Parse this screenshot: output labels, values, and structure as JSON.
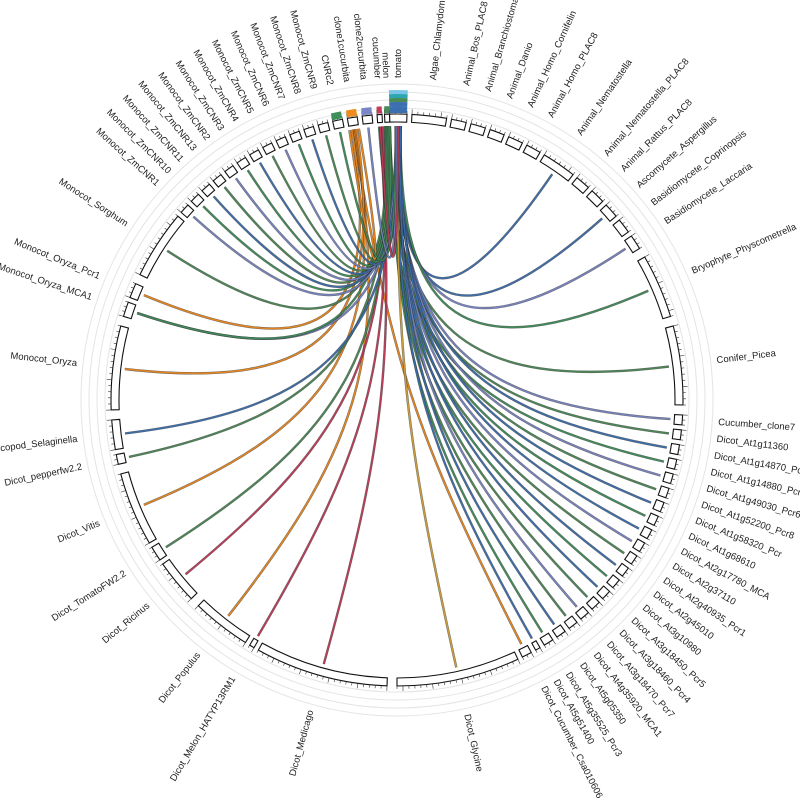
{
  "diagram": {
    "type": "circos-synteny",
    "segments": [
      {
        "id": "tomato",
        "label": "tomato"
      },
      {
        "id": "algae",
        "label": "Algae_Chlamydomonas"
      },
      {
        "id": "bos",
        "label": "Animal_Bos_PLAC8"
      },
      {
        "id": "branch",
        "label": "Animal_Branchiostoma"
      },
      {
        "id": "danio",
        "label": "Animal_Danio"
      },
      {
        "id": "homo_corn",
        "label": "Animal_Homo_Cornifelin"
      },
      {
        "id": "homo_plac8",
        "label": "Animal_Homo_PLAC8"
      },
      {
        "id": "nema",
        "label": "Animal_Nematostella"
      },
      {
        "id": "nema_plac8",
        "label": "Animal_Nematostella_PLAC8"
      },
      {
        "id": "rattus",
        "label": "Animal_Rattus_PLAC8"
      },
      {
        "id": "asperg",
        "label": "Ascomycete_Aspergillus"
      },
      {
        "id": "coprin",
        "label": "Basidiomycete_Coprinopsis"
      },
      {
        "id": "laccaria",
        "label": "Basidiomycete_Laccaria"
      },
      {
        "id": "physco",
        "label": "Bryophyte_Physcometrella"
      },
      {
        "id": "picea",
        "label": "Conifer_Picea"
      },
      {
        "id": "cuc7",
        "label": "Cucumber_clone7"
      },
      {
        "id": "at11360",
        "label": "Dicot_At1g11360"
      },
      {
        "id": "at14870",
        "label": "Dicot_At1g14870_Pcr2"
      },
      {
        "id": "at14880",
        "label": "Dicot_At1g14880_Pcr1"
      },
      {
        "id": "at49030",
        "label": "Dicot_At1g49030_Pcr6"
      },
      {
        "id": "at52200",
        "label": "Dicot_At1g52200_Pcr8"
      },
      {
        "id": "at58320",
        "label": "Dicot_At1g58320_Pcr"
      },
      {
        "id": "at68610",
        "label": "Dicot_At1g68610"
      },
      {
        "id": "at17780",
        "label": "Dicot_At2g17780_MCA"
      },
      {
        "id": "at37110",
        "label": "Dicot_At2g37110"
      },
      {
        "id": "at40935",
        "label": "Dicot_At2g40935_Pcr1"
      },
      {
        "id": "at45010",
        "label": "Dicot_At2g45010"
      },
      {
        "id": "at10980",
        "label": "Dicot_At3g10980"
      },
      {
        "id": "at18450",
        "label": "Dicot_At3g18450_Pcr5"
      },
      {
        "id": "at18460",
        "label": "Dicot_At3g18460_Pcr4"
      },
      {
        "id": "at18470",
        "label": "Dicot_At3g18470_Pcr7"
      },
      {
        "id": "at35920",
        "label": "Dicot_At4g35920_MCA1"
      },
      {
        "id": "at05350",
        "label": "Dicot_At5g05350"
      },
      {
        "id": "at35525",
        "label": "Dicot_At5g35525_Pcr3"
      },
      {
        "id": "at51400",
        "label": "Dicot_At5g51400"
      },
      {
        "id": "csa",
        "label": "Dicot_Cucumber_Csa010606"
      },
      {
        "id": "glycine",
        "label": "Dicot_Glycine"
      },
      {
        "id": "medicago",
        "label": "Dicot_Medicago"
      },
      {
        "id": "melon_hatyp",
        "label": "Dicot_Melon_HATYP13RM1"
      },
      {
        "id": "populus",
        "label": "Dicot_Populus"
      },
      {
        "id": "ricinus",
        "label": "Dicot_Ricinus"
      },
      {
        "id": "tomfw22",
        "label": "Dicot_TomatoFW2.2"
      },
      {
        "id": "vitis",
        "label": "Dicot_Vitis"
      },
      {
        "id": "pepper",
        "label": "Dicot_pepperfw2.2"
      },
      {
        "id": "selag",
        "label": "Lycopod_Selaginella"
      },
      {
        "id": "oryza",
        "label": "Monocot_Oryza"
      },
      {
        "id": "oryza_mca1",
        "label": "Monocot_Oryza_MCA1"
      },
      {
        "id": "oryza_pcr1",
        "label": "Monocot_Oryza_Pcr1"
      },
      {
        "id": "sorghum",
        "label": "Monocot_Sorghum"
      },
      {
        "id": "zmcnr1",
        "label": "Monocot_ZmCNR1"
      },
      {
        "id": "zmcnr10",
        "label": "Monocot_ZmCNR10"
      },
      {
        "id": "zmcnr11",
        "label": "Monocot_ZmCNR11"
      },
      {
        "id": "zmcnr13",
        "label": "Monocot_ZmCNR13"
      },
      {
        "id": "zmcnr2",
        "label": "Monocot_ZmCNR2"
      },
      {
        "id": "zmcnr3",
        "label": "Monocot_ZmCNR3"
      },
      {
        "id": "zmcnr4",
        "label": "Monocot_ZmCNR4"
      },
      {
        "id": "zmcnr5",
        "label": "Monocot_ZmCNR5"
      },
      {
        "id": "zmcnr6",
        "label": "Monocot_ZmCNR6"
      },
      {
        "id": "zmcnr7",
        "label": "Monocot_ZmCNR7"
      },
      {
        "id": "zmcnr8",
        "label": "Monocot_ZmCNR8"
      },
      {
        "id": "zmcnr9",
        "label": "Monocot_ZmCNR9"
      },
      {
        "id": "cnr2",
        "label": "CNRc2"
      },
      {
        "id": "clone1",
        "label": "clone1cucurbita"
      },
      {
        "id": "clone2",
        "label": "clone2cucurbita"
      },
      {
        "id": "cucumber",
        "label": "cucumber"
      },
      {
        "id": "melon",
        "label": "melon"
      }
    ],
    "source_colors": {
      "tomato": "#3b6fb0",
      "melon": "#4a8a55",
      "cucumber": "#c23b5a",
      "clone2cucurbita": "#7a86c8",
      "clone1cucurbita": "#f08a1c",
      "CNRc2": "#3f8f5a"
    },
    "links": [
      {
        "from": "tomato",
        "to": "nema",
        "color": "#3b6fb0"
      },
      {
        "from": "tomato",
        "to": "asperg",
        "color": "#3b6fb0"
      },
      {
        "from": "tomato",
        "to": "laccaria",
        "color": "#7a86c8"
      },
      {
        "from": "melon",
        "to": "picea",
        "color": "#4a8a55"
      },
      {
        "from": "tomato",
        "to": "physco",
        "color": "#3f8f5a"
      },
      {
        "from": "tomato",
        "to": "cuc7",
        "color": "#7a86c8"
      },
      {
        "from": "melon",
        "to": "at11360",
        "color": "#4a8a55"
      },
      {
        "from": "tomato",
        "to": "at14870",
        "color": "#3b6fb0"
      },
      {
        "from": "cucumber",
        "to": "at14880",
        "color": "#3f8f5a"
      },
      {
        "from": "tomato",
        "to": "at49030",
        "color": "#7a86c8"
      },
      {
        "from": "melon",
        "to": "at52200",
        "color": "#4a8a55"
      },
      {
        "from": "tomato",
        "to": "at58320",
        "color": "#3b6fb0"
      },
      {
        "from": "melon",
        "to": "at68610",
        "color": "#3f8f5a"
      },
      {
        "from": "tomato",
        "to": "at17780",
        "color": "#3b6fb0"
      },
      {
        "from": "tomato",
        "to": "at37110",
        "color": "#7a86c8"
      },
      {
        "from": "melon",
        "to": "at40935",
        "color": "#4a8a55"
      },
      {
        "from": "tomato",
        "to": "at45010",
        "color": "#3b6fb0"
      },
      {
        "from": "melon",
        "to": "at10980",
        "color": "#3f8f5a"
      },
      {
        "from": "tomato",
        "to": "at18450",
        "color": "#3b6fb0"
      },
      {
        "from": "melon",
        "to": "at18460",
        "color": "#4a8a55"
      },
      {
        "from": "tomato",
        "to": "at18470",
        "color": "#7a86c8"
      },
      {
        "from": "melon",
        "to": "at35920",
        "color": "#4a8a55"
      },
      {
        "from": "tomato",
        "to": "at05350",
        "color": "#3b6fb0"
      },
      {
        "from": "melon",
        "to": "at35525",
        "color": "#3f8f5a"
      },
      {
        "from": "tomato",
        "to": "at51400",
        "color": "#3b6fb0"
      },
      {
        "from": "clone1cucurbita",
        "to": "csa",
        "color": "#f08a1c"
      },
      {
        "from": "tomato",
        "to": "glycine",
        "color": "#d4a23a"
      },
      {
        "from": "cucumber",
        "to": "medicago",
        "color": "#c23b5a"
      },
      {
        "from": "cucumber",
        "to": "melon_hatyp",
        "color": "#c23b5a"
      },
      {
        "from": "clone1cucurbita",
        "to": "populus",
        "color": "#f08a1c"
      },
      {
        "from": "cucumber",
        "to": "ricinus",
        "color": "#c23b5a"
      },
      {
        "from": "melon",
        "to": "tomfw22",
        "color": "#4a8a55"
      },
      {
        "from": "clone1cucurbita",
        "to": "vitis",
        "color": "#f08a1c"
      },
      {
        "from": "melon",
        "to": "pepper",
        "color": "#4a8a55"
      },
      {
        "from": "tomato",
        "to": "selag",
        "color": "#3b6fb0"
      },
      {
        "from": "clone1cucurbita",
        "to": "oryza",
        "color": "#f08a1c"
      },
      {
        "from": "tomato",
        "to": "oryza_mca1",
        "color": "#7a86c8"
      },
      {
        "from": "melon",
        "to": "oryza_mca1",
        "color": "#3f8f5a"
      },
      {
        "from": "clone1cucurbita",
        "to": "oryza_pcr1",
        "color": "#f08a1c"
      },
      {
        "from": "melon",
        "to": "sorghum",
        "color": "#4a8a55"
      },
      {
        "from": "tomato",
        "to": "zmcnr1",
        "color": "#7a86c8"
      },
      {
        "from": "melon",
        "to": "zmcnr10",
        "color": "#3f8f5a"
      },
      {
        "from": "tomato",
        "to": "zmcnr11",
        "color": "#3b6fb0"
      },
      {
        "from": "melon",
        "to": "zmcnr13",
        "color": "#4a8a55"
      },
      {
        "from": "tomato",
        "to": "zmcnr2",
        "color": "#7a86c8"
      },
      {
        "from": "melon",
        "to": "zmcnr3",
        "color": "#3f8f5a"
      },
      {
        "from": "tomato",
        "to": "zmcnr4",
        "color": "#3b6fb0"
      },
      {
        "from": "melon",
        "to": "zmcnr5",
        "color": "#4a8a55"
      },
      {
        "from": "tomato",
        "to": "zmcnr6",
        "color": "#7a86c8"
      },
      {
        "from": "melon",
        "to": "zmcnr7",
        "color": "#3f8f5a"
      },
      {
        "from": "tomato",
        "to": "zmcnr8",
        "color": "#3b6fb0"
      },
      {
        "from": "melon",
        "to": "zmcnr9",
        "color": "#4a8a55"
      },
      {
        "from": "clone1cucurbita",
        "to": "clone1cucurbita",
        "color": "#f08a1c"
      },
      {
        "from": "tomato",
        "to": "cnr2",
        "color": "#3f8f5a"
      },
      {
        "from": "tomato",
        "to": "clone2cucurbita",
        "color": "#7a86c8"
      },
      {
        "from": "tomato",
        "to": "cucumber",
        "color": "#c23b5a"
      }
    ]
  }
}
